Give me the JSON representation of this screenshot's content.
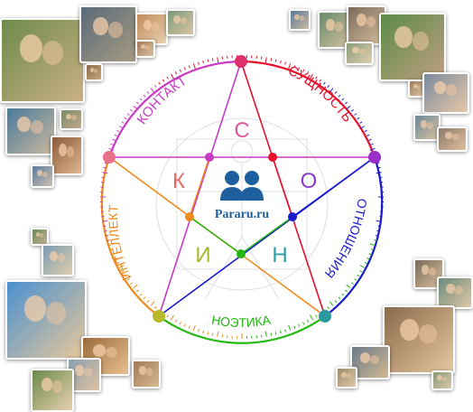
{
  "diagram": {
    "sectors": {
      "kontakt": {
        "label": "КОНТАКТ",
        "color": "#c83cc4"
      },
      "sushchnost": {
        "label": "СУЩНОСТЬ",
        "color": "#e8102a"
      },
      "otnosheniya": {
        "label": "ОТНОШЕНИЯ",
        "color": "#1a1acd"
      },
      "noetika": {
        "label": "НОЭТИКА",
        "color": "#22b80e"
      },
      "intellekt": {
        "label": "ИНТЕЛЛЕКТ",
        "color": "#f08a1a"
      }
    },
    "letters": {
      "s": {
        "char": "С",
        "color": "#e0589a"
      },
      "o": {
        "char": "О",
        "color": "#8a3cc8"
      },
      "n": {
        "char": "Н",
        "color": "#2aa0a8"
      },
      "i": {
        "char": "И",
        "color": "#a6b82a"
      },
      "k": {
        "char": "К",
        "color": "#e46a6a"
      }
    },
    "node_colors": {
      "top": "#e0306a",
      "upper_left": "#e87088",
      "upper_right": "#9a2ec8",
      "lower_right": "#2a9aa0",
      "lower_left": "#b8b82a"
    },
    "logo": {
      "text": "Pararu.ru",
      "color": "#1e5fa0"
    }
  }
}
